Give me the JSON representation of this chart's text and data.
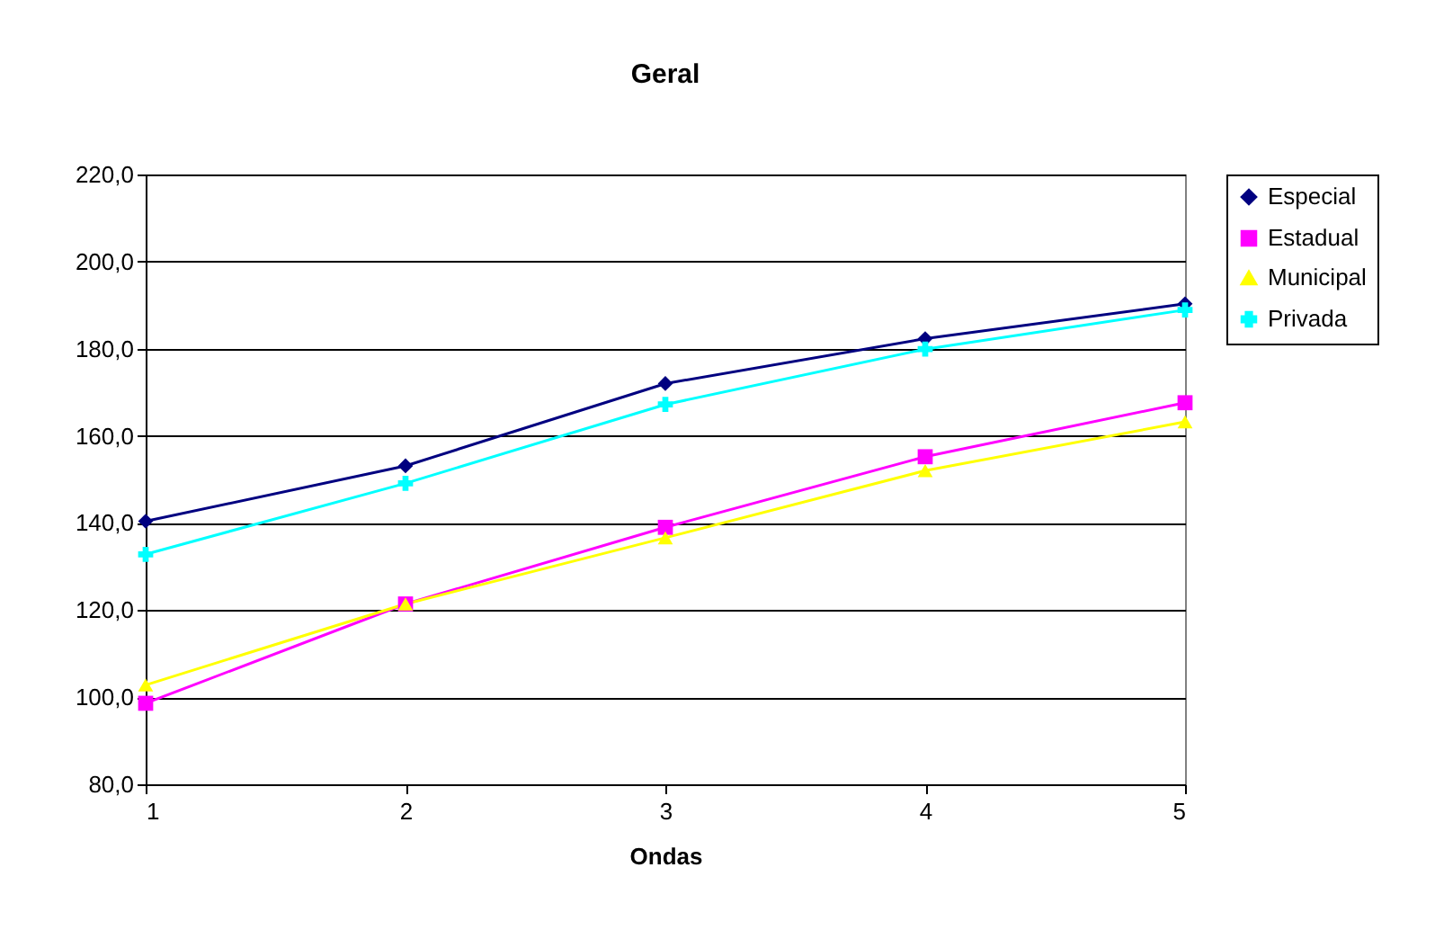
{
  "chart_data": {
    "type": "line",
    "title": "Geral",
    "xlabel": "Ondas",
    "x": [
      1,
      2,
      3,
      4,
      5
    ],
    "series": [
      {
        "name": "Especial",
        "color": "#000080",
        "marker": "diamond",
        "values": [
          140.4,
          153.1,
          172.0,
          182.3,
          190.3
        ]
      },
      {
        "name": "Estadual",
        "color": "#ff00ff",
        "marker": "square",
        "values": [
          98.6,
          121.4,
          139.0,
          155.2,
          167.6
        ]
      },
      {
        "name": "Municipal",
        "color": "#ffff00",
        "marker": "triangle",
        "values": [
          102.8,
          121.4,
          136.6,
          152.0,
          163.2
        ]
      },
      {
        "name": "Privada",
        "color": "#00ffff",
        "marker": "cross",
        "values": [
          132.8,
          149.1,
          167.2,
          179.9,
          188.9
        ]
      }
    ],
    "xlim": [
      1,
      5
    ],
    "xticks": [
      1,
      2,
      3,
      4,
      5
    ],
    "ylim": [
      80,
      220
    ],
    "yticks": [
      {
        "value": 80,
        "label": "80,0"
      },
      {
        "value": 100,
        "label": "100,0"
      },
      {
        "value": 120,
        "label": "120,0"
      },
      {
        "value": 140,
        "label": "140,0"
      },
      {
        "value": 160,
        "label": "160,0"
      },
      {
        "value": 180,
        "label": "180,0"
      },
      {
        "value": 200,
        "label": "200,0"
      },
      {
        "value": 220,
        "label": "220,0"
      }
    ],
    "grid": "y",
    "legend": "right",
    "line_style": "solid"
  }
}
